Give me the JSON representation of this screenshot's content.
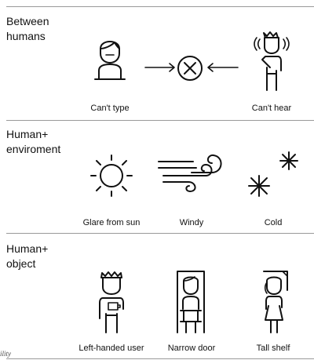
{
  "sections": [
    {
      "title_lines": [
        "Between",
        "humans"
      ],
      "items": [
        {
          "caption": "Can't type",
          "icon": "person-at-desk-icon"
        },
        {
          "caption": "Can't hear",
          "icon": "person-with-sound-waves-icon"
        }
      ],
      "connector_icon": "x-circle-icon"
    },
    {
      "title_lines": [
        "Human+",
        "enviroment"
      ],
      "items": [
        {
          "caption": "Glare from sun",
          "icon": "sun-icon"
        },
        {
          "caption": "Windy",
          "icon": "wind-icon"
        },
        {
          "caption": "Cold",
          "icon": "snowflake-icon"
        }
      ]
    },
    {
      "title_lines": [
        "Human+",
        "object"
      ],
      "items": [
        {
          "caption": "Left-handed user",
          "icon": "left-handed-person-icon"
        },
        {
          "caption": "Narrow door",
          "icon": "person-in-doorway-icon"
        },
        {
          "caption": "Tall shelf",
          "icon": "person-under-shelf-icon"
        }
      ]
    }
  ],
  "edge_text": "ility",
  "colors": {
    "line": "#111111",
    "divider": "#9a9a9a",
    "background": "#ffffff"
  }
}
